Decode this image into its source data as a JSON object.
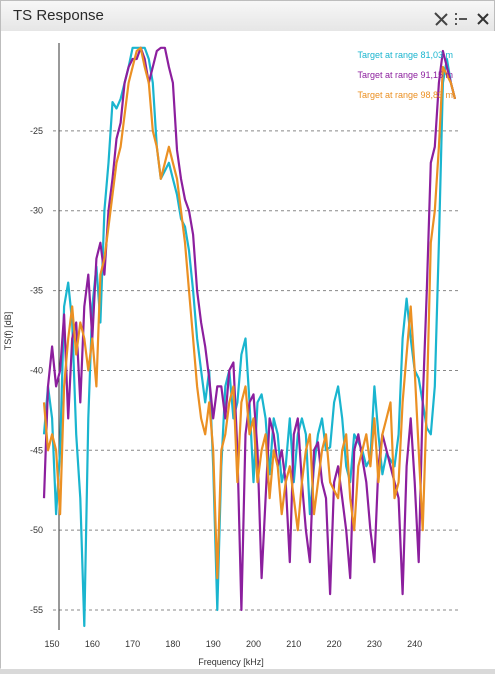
{
  "window": {
    "title": "TS Response",
    "buttons": {
      "tools_icon": "tools-icon",
      "menu_icon": "menu-icon",
      "close_icon": "close-icon"
    }
  },
  "chart_data": {
    "type": "line",
    "xlabel": "Frequency [kHz]",
    "ylabel": "TS(f) [dB]",
    "xlim": [
      148,
      251
    ],
    "ylim": [
      -56,
      -19.5
    ],
    "xticks": [
      150,
      160,
      170,
      180,
      190,
      200,
      210,
      220,
      230,
      240
    ],
    "yticks": [
      -25,
      -30,
      -35,
      -40,
      -45,
      -50,
      -55
    ],
    "grid": "horizontal dashed",
    "legend_position": "top-right",
    "series": [
      {
        "name": "Target at range 81,03 m",
        "color": "#1ab5cf",
        "x": [
          148,
          149,
          150,
          151,
          152,
          153,
          154,
          155,
          156,
          157,
          158,
          159,
          160,
          161,
          162,
          163,
          164,
          165,
          166,
          167,
          168,
          169,
          170,
          171,
          172,
          173,
          174,
          175,
          176,
          177,
          178,
          179,
          180,
          181,
          182,
          183,
          184,
          185,
          186,
          187,
          188,
          189,
          190,
          191,
          192,
          193,
          194,
          195,
          196,
          197,
          198,
          199,
          200,
          201,
          202,
          203,
          204,
          205,
          206,
          207,
          208,
          209,
          210,
          211,
          212,
          213,
          214,
          215,
          216,
          217,
          218,
          219,
          220,
          221,
          222,
          223,
          224,
          225,
          226,
          227,
          228,
          229,
          230,
          231,
          232,
          233,
          234,
          235,
          236,
          237,
          238,
          239,
          240,
          241,
          242,
          243,
          244,
          245,
          246,
          247,
          248,
          249,
          250
        ],
        "y": [
          -44,
          -41,
          -43,
          -49,
          -45,
          -36,
          -34.5,
          -37,
          -44,
          -48,
          -56,
          -43,
          -36,
          -33.5,
          -37,
          -30,
          -27,
          -23.2,
          -23.6,
          -23,
          -22,
          -21,
          -19.8,
          -19.8,
          -19.8,
          -19.8,
          -20.5,
          -22,
          -26,
          -28,
          -27.5,
          -27,
          -28,
          -29,
          -30.5,
          -31,
          -32.5,
          -35,
          -38,
          -40,
          -42,
          -40,
          -46,
          -55,
          -46,
          -41,
          -40,
          -43,
          -42,
          -39,
          -38,
          -42,
          -47,
          -42,
          -41.5,
          -43,
          -46.5,
          -43,
          -44,
          -47,
          -46,
          -43,
          -47,
          -44,
          -43,
          -44,
          -49,
          -46,
          -44,
          -43,
          -45,
          -44.8,
          -42,
          -41,
          -43,
          -46,
          -47,
          -44,
          -44.5,
          -45,
          -46,
          -45.5,
          -41,
          -44,
          -46.5,
          -45.2,
          -45.6,
          -46,
          -44,
          -38,
          -35.5,
          -38,
          -40,
          -40.5,
          -42,
          -43.6,
          -44,
          -41,
          -32,
          -22,
          -20.5,
          -22,
          -23
        ]
      },
      {
        "name": "Target at range 91,15 m",
        "color": "#8c1f9e",
        "x": [
          148,
          149,
          150,
          151,
          152,
          153,
          154,
          155,
          156,
          157,
          158,
          159,
          160,
          161,
          162,
          163,
          164,
          165,
          166,
          167,
          168,
          169,
          170,
          171,
          172,
          173,
          174,
          175,
          176,
          177,
          178,
          179,
          180,
          181,
          182,
          183,
          184,
          185,
          186,
          187,
          188,
          189,
          190,
          191,
          192,
          193,
          194,
          195,
          196,
          197,
          198,
          199,
          200,
          201,
          202,
          203,
          204,
          205,
          206,
          207,
          208,
          209,
          210,
          211,
          212,
          213,
          214,
          215,
          216,
          217,
          218,
          219,
          220,
          221,
          222,
          223,
          224,
          225,
          226,
          227,
          228,
          229,
          230,
          231,
          232,
          233,
          234,
          235,
          236,
          237,
          238,
          239,
          240,
          241,
          242,
          243,
          244,
          245,
          246,
          247,
          248,
          249,
          250
        ],
        "y": [
          -48,
          -41,
          -38.5,
          -41,
          -40,
          -36.5,
          -43,
          -38,
          -37,
          -42,
          -36,
          -34,
          -38,
          -33,
          -32,
          -34,
          -30,
          -28,
          -25.5,
          -24.5,
          -22,
          -21,
          -20.5,
          -20.5,
          -19.8,
          -20.5,
          -22,
          -21,
          -20,
          -19.8,
          -19.8,
          -21,
          -22,
          -26.2,
          -28,
          -29.3,
          -30,
          -31.5,
          -35,
          -37,
          -38.5,
          -40.5,
          -43,
          -41,
          -41,
          -43,
          -40,
          -39.5,
          -45,
          -55,
          -44,
          -42,
          -41.5,
          -45,
          -53,
          -48,
          -43,
          -44,
          -46,
          -45,
          -47,
          -52,
          -44,
          -43,
          -47,
          -50,
          -52,
          -45,
          -44.5,
          -47,
          -48,
          -54,
          -47,
          -46,
          -48,
          -50,
          -53,
          -45,
          -44,
          -45.5,
          -47,
          -50,
          -52,
          -46,
          -44,
          -45,
          -46,
          -47,
          -48,
          -54,
          -46,
          -43,
          -47,
          -52,
          -42,
          -35,
          -27,
          -26,
          -22,
          -20,
          -21,
          -22,
          -23
        ]
      },
      {
        "name": "Target at range 98,83 m",
        "color": "#eb9023",
        "x": [
          148,
          149,
          150,
          151,
          152,
          153,
          154,
          155,
          156,
          157,
          158,
          159,
          160,
          161,
          162,
          163,
          164,
          165,
          166,
          167,
          168,
          169,
          170,
          171,
          172,
          173,
          174,
          175,
          176,
          177,
          178,
          179,
          180,
          181,
          182,
          183,
          184,
          185,
          186,
          187,
          188,
          189,
          190,
          191,
          192,
          193,
          194,
          195,
          196,
          197,
          198,
          199,
          200,
          201,
          202,
          203,
          204,
          205,
          206,
          207,
          208,
          209,
          210,
          211,
          212,
          213,
          214,
          215,
          216,
          217,
          218,
          219,
          220,
          221,
          222,
          223,
          224,
          225,
          226,
          227,
          228,
          229,
          230,
          231,
          232,
          233,
          234,
          235,
          236,
          237,
          238,
          239,
          240,
          241,
          242,
          243,
          244,
          245,
          246,
          247,
          248,
          249,
          250
        ],
        "y": [
          -42,
          -45,
          -44,
          -45,
          -49,
          -41,
          -38,
          -36,
          -39,
          -37,
          -38,
          -40,
          -38,
          -41,
          -34,
          -33,
          -31,
          -29,
          -27,
          -26,
          -24,
          -22,
          -21,
          -20,
          -19.8,
          -21,
          -22,
          -25,
          -26,
          -28,
          -27,
          -26,
          -27,
          -28,
          -30,
          -32,
          -35,
          -38,
          -41,
          -43,
          -44,
          -42,
          -45,
          -53,
          -45,
          -44,
          -42,
          -41,
          -47,
          -42,
          -41,
          -44,
          -43,
          -47,
          -45,
          -44,
          -48,
          -45,
          -46,
          -49,
          -47,
          -46,
          -48,
          -50,
          -47,
          -45,
          -44,
          -49,
          -47,
          -45,
          -44,
          -47,
          -47.5,
          -48,
          -45,
          -44,
          -48,
          -50,
          -46,
          -45,
          -44,
          -46,
          -43,
          -47,
          -44,
          -43,
          -42,
          -48,
          -47,
          -42,
          -39,
          -36,
          -40,
          -45,
          -50,
          -42,
          -32,
          -30,
          -26,
          -21,
          -21.5,
          -22,
          -23
        ]
      }
    ]
  }
}
